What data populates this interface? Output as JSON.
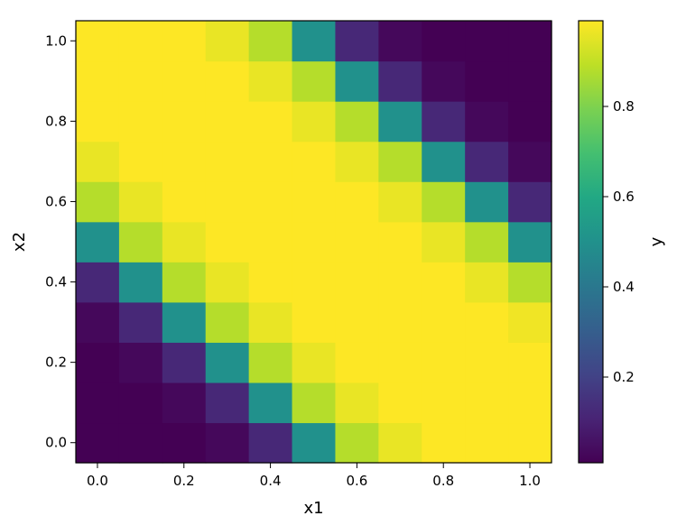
{
  "chart_data": {
    "type": "heatmap",
    "title": "",
    "xlabel": "x1",
    "ylabel": "x2",
    "colorbar_label": "y",
    "colormap": "viridis",
    "x": [
      0.0,
      0.1,
      0.2,
      0.3,
      0.4,
      0.5,
      0.6,
      0.7,
      0.8,
      0.9,
      1.0
    ],
    "y": [
      0.0,
      0.1,
      0.2,
      0.3,
      0.4,
      0.5,
      0.6,
      0.7,
      0.8,
      0.9,
      1.0
    ],
    "xlim": [
      -0.05,
      1.05
    ],
    "ylim": [
      -0.05,
      1.05
    ],
    "x_ticks": [
      "0.0",
      "0.2",
      "0.4",
      "0.6",
      "0.8",
      "1.0"
    ],
    "y_ticks": [
      "0.0",
      "0.2",
      "0.4",
      "0.6",
      "0.8",
      "1.0"
    ],
    "colorbar_ticks": [
      "0.2",
      "0.4",
      "0.6",
      "0.8"
    ],
    "clim": [
      0.01,
      0.99
    ],
    "values": [
      [
        0.01,
        0.01,
        0.01,
        0.03,
        0.12,
        0.5,
        0.88,
        0.96,
        0.99,
        0.99,
        0.99
      ],
      [
        0.01,
        0.01,
        0.03,
        0.12,
        0.5,
        0.88,
        0.96,
        0.99,
        0.99,
        0.99,
        0.99
      ],
      [
        0.01,
        0.03,
        0.12,
        0.5,
        0.88,
        0.96,
        0.99,
        0.99,
        0.99,
        0.99,
        0.99
      ],
      [
        0.03,
        0.12,
        0.5,
        0.88,
        0.96,
        0.99,
        0.99,
        0.99,
        0.99,
        0.99,
        0.97
      ],
      [
        0.12,
        0.5,
        0.88,
        0.96,
        0.99,
        0.99,
        0.99,
        0.99,
        0.99,
        0.96,
        0.88
      ],
      [
        0.5,
        0.88,
        0.96,
        0.99,
        0.99,
        0.99,
        0.99,
        0.99,
        0.96,
        0.88,
        0.5
      ],
      [
        0.88,
        0.96,
        0.99,
        0.99,
        0.99,
        0.99,
        0.99,
        0.96,
        0.88,
        0.5,
        0.12
      ],
      [
        0.96,
        0.99,
        0.99,
        0.99,
        0.99,
        0.99,
        0.96,
        0.88,
        0.5,
        0.12,
        0.03
      ],
      [
        0.99,
        0.99,
        0.99,
        0.99,
        0.99,
        0.96,
        0.88,
        0.5,
        0.12,
        0.03,
        0.01
      ],
      [
        0.99,
        0.99,
        0.99,
        0.99,
        0.96,
        0.88,
        0.5,
        0.12,
        0.03,
        0.01,
        0.01
      ],
      [
        0.99,
        0.99,
        0.99,
        0.96,
        0.88,
        0.5,
        0.12,
        0.03,
        0.01,
        0.01,
        0.01
      ]
    ]
  }
}
